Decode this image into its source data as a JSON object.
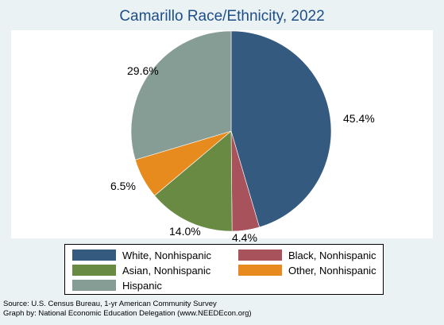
{
  "chart_data": {
    "type": "pie",
    "title": "Camarillo Race/Ethnicity, 2022",
    "categories": [
      "White, Nonhispanic",
      "Black, Nonhispanic",
      "Asian, Nonhispanic",
      "Other, Nonhispanic",
      "Hispanic"
    ],
    "values": [
      45.4,
      4.4,
      14.0,
      6.5,
      29.6
    ],
    "labels": [
      "45.4%",
      "4.4%",
      "14.0%",
      "6.5%",
      "29.6%"
    ],
    "colors": [
      "#355a80",
      "#a8525c",
      "#698a43",
      "#e88b1f",
      "#869d95"
    ],
    "legend": {
      "position": "bottom",
      "entries": [
        "White, Nonhispanic",
        "Black, Nonhispanic",
        "Asian, Nonhispanic",
        "Other, Nonhispanic",
        "Hispanic"
      ]
    }
  },
  "notes": {
    "source": "Source:  U.S. Census Bureau, 1-yr American Community Survey",
    "graph_by": "Graph by: National Economic Education Delegation (www.NEEDEcon.org)"
  }
}
